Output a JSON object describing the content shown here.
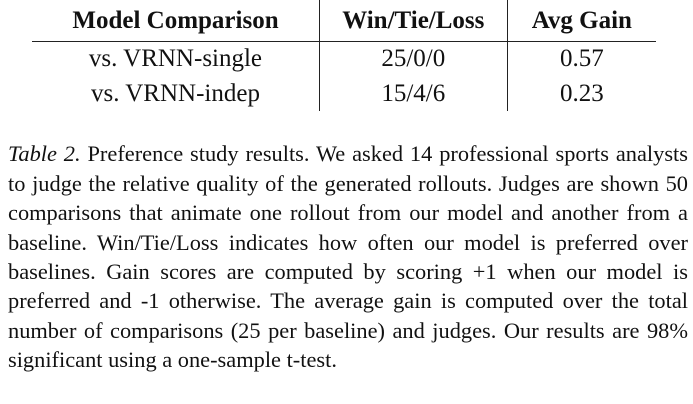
{
  "table": {
    "headers": [
      "Model Comparison",
      "Win/Tie/Loss",
      "Avg Gain"
    ],
    "rows": [
      [
        "vs. VRNN-single",
        "25/0/0",
        "0.57"
      ],
      [
        "vs. VRNN-indep",
        "15/4/6",
        "0.23"
      ]
    ]
  },
  "caption": {
    "label": "Table 2.",
    "text": "Preference study results. We asked 14 professional sports analysts to judge the relative quality of the generated rollouts. Judges are shown 50 comparisons that animate one rollout from our model and another from a baseline. Win/Tie/Loss indicates how often our model is preferred over baselines. Gain scores are computed by scoring +1 when our model is preferred and -1 otherwise. The average gain is computed over the total number of comparisons (25 per baseline) and judges. Our results are 98% significant using a one-sample t-test."
  }
}
